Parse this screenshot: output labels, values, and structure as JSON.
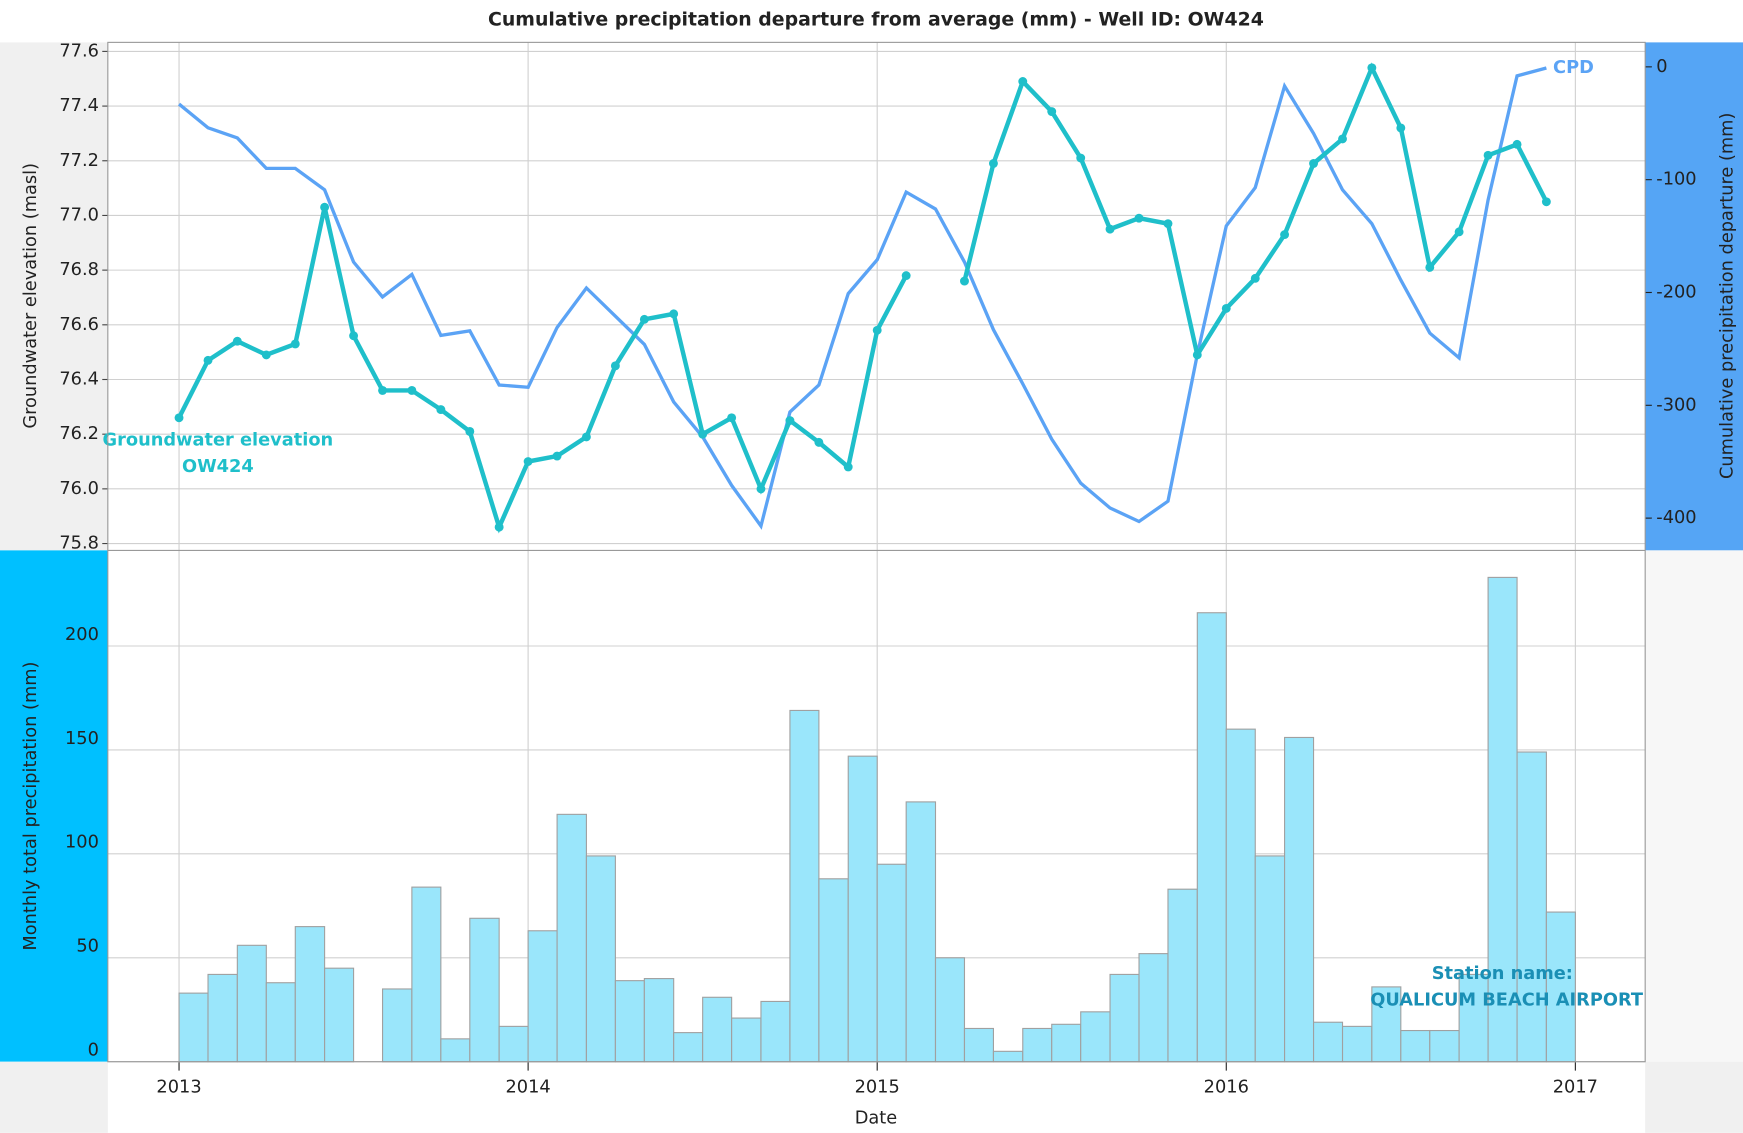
{
  "chart_data": [
    {
      "type": "line",
      "title": "Cumulative precipitation departure from average (mm) - Well ID: OW424",
      "ylabel": "Groundwater elevation (masl)",
      "y2label": "Cumulative precipitation departure (mm)",
      "x": [
        2013,
        2013.083,
        2013.167,
        2013.25,
        2013.333,
        2013.417,
        2013.5,
        2013.583,
        2013.667,
        2013.75,
        2013.833,
        2013.917,
        2014,
        2014.083,
        2014.167,
        2014.25,
        2014.333,
        2014.417,
        2014.5,
        2014.583,
        2014.667,
        2014.75,
        2014.833,
        2014.917,
        2015,
        2015.083,
        2015.167,
        2015.25,
        2015.333,
        2015.417,
        2015.5,
        2015.583,
        2015.667,
        2015.75,
        2015.833,
        2015.917,
        2016,
        2016.083,
        2016.167,
        2016.25,
        2016.333,
        2016.417,
        2016.5,
        2016.583,
        2016.667,
        2016.75,
        2016.833,
        2016.917
      ],
      "xlim": [
        2012.796,
        2017.2
      ],
      "xticks": [
        2013,
        2014,
        2015,
        2016,
        2017
      ],
      "ylim": [
        75.775,
        77.633
      ],
      "yticks": [
        75.8,
        {
          "value": 76,
          "label": "76.0"
        },
        76.2,
        76.4,
        76.6,
        76.8,
        {
          "value": 77,
          "label": "77.0"
        },
        77.2,
        77.4,
        77.6
      ],
      "y2lim": [
        -428.6,
        21.7
      ],
      "y2ticks": [
        0,
        -100,
        -200,
        -300,
        -400
      ],
      "grid": true,
      "series": [
        {
          "name": "Groundwater elevation OW424",
          "color": "#1fbfca",
          "markers": true,
          "values": [
            76.26,
            76.47,
            76.54,
            76.49,
            76.53,
            77.03,
            76.56,
            76.36,
            76.36,
            76.29,
            76.21,
            75.86,
            76.1,
            76.12,
            76.19,
            76.45,
            76.62,
            76.64,
            76.2,
            76.26,
            76.0,
            76.25,
            76.17,
            76.08,
            76.58,
            76.78,
            null,
            76.76,
            77.19,
            77.49,
            77.38,
            77.21,
            76.95,
            76.99,
            76.97,
            76.49,
            76.66,
            76.77,
            76.93,
            77.19,
            77.28,
            77.54,
            77.32,
            76.81,
            76.94,
            77.22,
            77.26,
            77.05
          ]
        },
        {
          "name": "CPD",
          "color": "#5ba3f5",
          "axis": "y2",
          "markers": false,
          "values": [
            -33,
            -54,
            -63,
            -90,
            -90,
            -109,
            -173,
            -204,
            -184,
            -238,
            -234,
            -282,
            -284,
            -231,
            -196,
            -221,
            -246,
            -297,
            -328,
            -371,
            -407,
            -306,
            -282,
            -201,
            -171,
            -111,
            -126,
            -173,
            -233,
            -281,
            -330,
            -369,
            -391,
            -403,
            -385,
            -255,
            -141,
            -107,
            -17,
            -59,
            -109,
            -139,
            -189,
            -236,
            -258,
            -118,
            -8,
            -1
          ]
        }
      ]
    },
    {
      "type": "histogram",
      "ylabel": "Monthly total precipitation (mm)",
      "xlabel": "Date",
      "annotations": [
        "Station name:",
        "QUALICUM BEACH AIRPORT"
      ],
      "color": "#9ae6fb",
      "bins": [
        2013,
        2013.083,
        2013.167,
        2013.25,
        2013.333,
        2013.417,
        2013.5,
        2013.583,
        2013.667,
        2013.75,
        2013.833,
        2013.917,
        2014,
        2014.083,
        2014.167,
        2014.25,
        2014.333,
        2014.417,
        2014.5,
        2014.583,
        2014.667,
        2014.75,
        2014.833,
        2014.917,
        2015,
        2015.083,
        2015.167,
        2015.25,
        2015.333,
        2015.417,
        2015.5,
        2015.583,
        2015.667,
        2015.75,
        2015.833,
        2015.917,
        2016,
        2016.083,
        2016.167,
        2016.25,
        2016.333,
        2016.417,
        2016.5,
        2016.583,
        2016.667,
        2016.75,
        2016.833,
        2016.917,
        2017
      ],
      "values": [
        33,
        42,
        56,
        38,
        65,
        45,
        null,
        35,
        84,
        11,
        69,
        17,
        63,
        119,
        99,
        39,
        40,
        14,
        31,
        21,
        29,
        169,
        88,
        147,
        95,
        125,
        50,
        16,
        5,
        16,
        18,
        24,
        42,
        52,
        83,
        216,
        160,
        99,
        156,
        19,
        17,
        36,
        15,
        15,
        42,
        233,
        149,
        72
      ],
      "xlim": [
        2012.796,
        2017.2
      ],
      "xticks": [
        2013,
        2014,
        2015,
        2016,
        2017
      ],
      "ylim": [
        0,
        246
      ],
      "yticks": [
        0,
        50,
        100,
        150,
        200
      ],
      "grid": true
    }
  ]
}
